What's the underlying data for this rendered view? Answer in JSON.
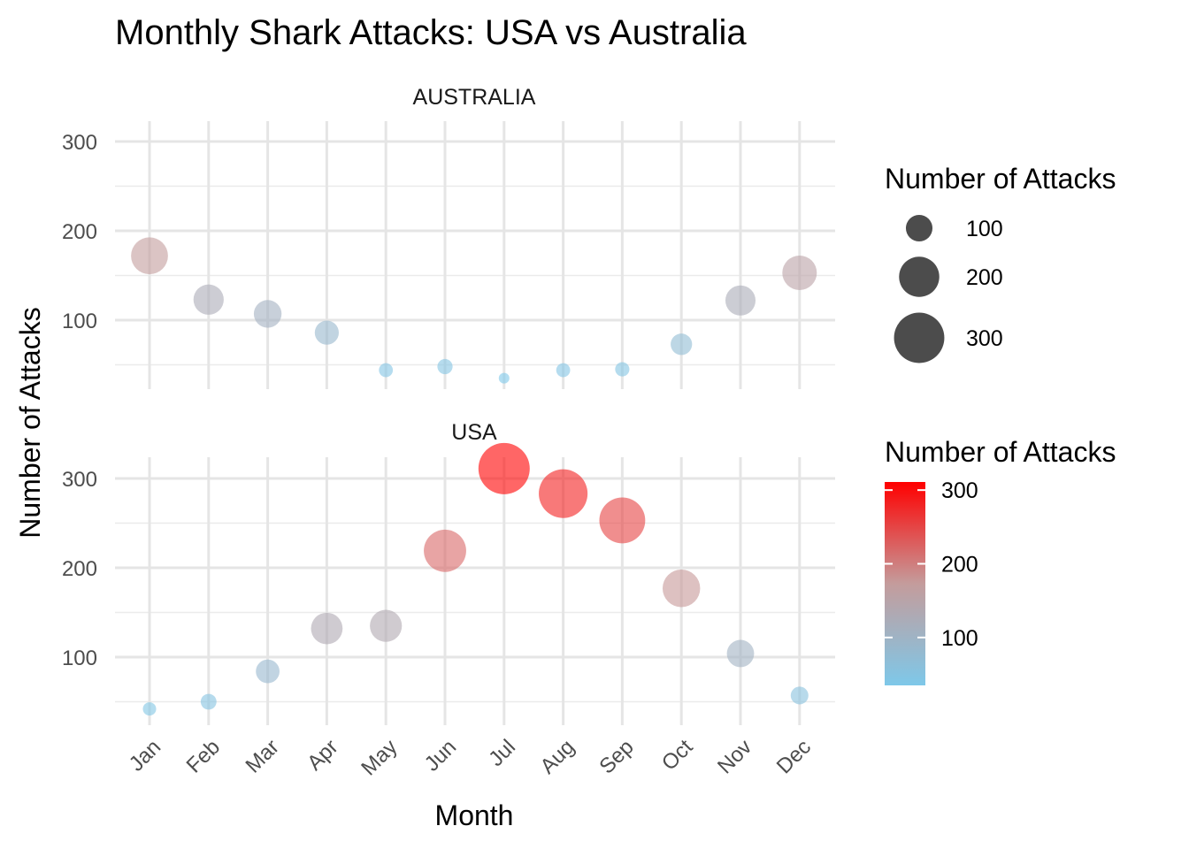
{
  "chart_data": {
    "type": "scatter",
    "title": "Monthly Shark Attacks: USA vs Australia",
    "xlabel": "Month",
    "ylabel": "Number of Attacks",
    "categories": [
      "Jan",
      "Feb",
      "Mar",
      "Apr",
      "May",
      "Jun",
      "Jul",
      "Aug",
      "Sep",
      "Oct",
      "Nov",
      "Dec"
    ],
    "y_ticks": [
      100,
      200,
      300
    ],
    "ylim": [
      18,
      322
    ],
    "grid": true,
    "facets": [
      {
        "name": "AUSTRALIA",
        "values": [
          172,
          123,
          107,
          86,
          44,
          48,
          35,
          44,
          45,
          73,
          122,
          153
        ]
      },
      {
        "name": "USA",
        "values": [
          42,
          50,
          84,
          132,
          135,
          219,
          311,
          283,
          253,
          177,
          104,
          57
        ]
      }
    ],
    "size_legend": {
      "title": "Number of Attacks",
      "labels": [
        "100",
        "200",
        "300"
      ],
      "values": [
        100,
        200,
        300
      ]
    },
    "color_legend": {
      "title": "Number of Attacks",
      "labels": [
        "100",
        "200",
        "300"
      ],
      "values": [
        100,
        200,
        300
      ],
      "range": [
        35,
        311
      ],
      "colors": {
        "low": "#7EC8E9",
        "mid": "#C49C9C",
        "high": "#FF0000"
      }
    },
    "point_alpha": 0.6,
    "legend_position": "right"
  }
}
